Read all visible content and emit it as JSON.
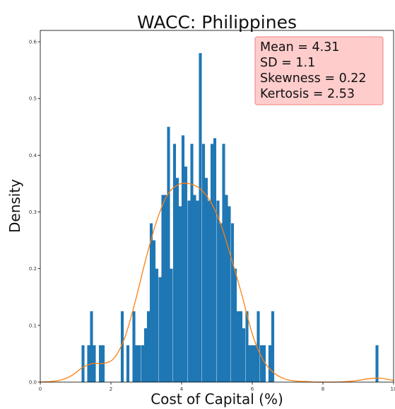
{
  "chart_data": {
    "type": "bar",
    "title": "WACC: Philippines",
    "xlabel": "Cost of Capital (%)",
    "ylabel": "Density",
    "xlim": [
      0,
      10
    ],
    "ylim": [
      0,
      0.62
    ],
    "x_ticks": [
      0,
      2,
      4,
      6,
      8,
      10
    ],
    "x_tick_labels": [
      "0",
      "2",
      "4",
      "6",
      "8",
      "10"
    ],
    "y_ticks": [
      0,
      0.1,
      0.2,
      0.3,
      0.4,
      0.5,
      0.6
    ],
    "y_tick_labels": [
      "0.0",
      "0.1",
      "0.2",
      "0.3",
      "0.4",
      "0.5",
      "0.6"
    ],
    "grid": false,
    "bar_color": "#1f77b4",
    "kde_color": "#ff7f0e",
    "bin_width": 0.0819,
    "histogram": {
      "x": [
        1.21,
        1.37,
        1.45,
        1.53,
        1.62,
        1.7,
        1.78,
        2.32,
        2.48,
        2.57,
        2.65,
        2.73,
        2.81,
        2.9,
        2.98,
        3.06,
        3.14,
        3.22,
        3.3,
        3.39,
        3.47,
        3.55,
        3.63,
        3.71,
        3.8,
        3.88,
        3.96,
        4.04,
        4.12,
        4.21,
        4.29,
        4.37,
        4.45,
        4.53,
        4.62,
        4.7,
        4.78,
        4.86,
        4.94,
        5.03,
        5.11,
        5.19,
        5.27,
        5.35,
        5.44,
        5.52,
        5.6,
        5.68,
        5.76,
        5.85,
        5.93,
        6.01,
        6.09,
        6.17,
        6.26,
        6.34,
        6.42,
        6.5,
        6.58,
        9.53
      ],
      "density": [
        0.065,
        0.065,
        0.125,
        0.065,
        0.0,
        0.065,
        0.065,
        0.125,
        0.065,
        0.0,
        0.125,
        0.065,
        0.065,
        0.065,
        0.095,
        0.125,
        0.28,
        0.25,
        0.2,
        0.185,
        0.33,
        0.33,
        0.45,
        0.2,
        0.42,
        0.36,
        0.31,
        0.435,
        0.38,
        0.32,
        0.42,
        0.33,
        0.32,
        0.58,
        0.42,
        0.36,
        0.32,
        0.42,
        0.43,
        0.32,
        0.28,
        0.42,
        0.33,
        0.31,
        0.28,
        0.2,
        0.125,
        0.125,
        0.095,
        0.125,
        0.065,
        0.065,
        0.065,
        0.125,
        0.065,
        0.065,
        0.0,
        0.065,
        0.125,
        0.065
      ]
    },
    "kde": {
      "x": [
        0.0,
        0.3,
        0.6,
        0.9,
        1.2,
        1.5,
        1.8,
        2.1,
        2.4,
        2.7,
        3.0,
        3.3,
        3.6,
        3.9,
        4.2,
        4.5,
        4.8,
        5.1,
        5.4,
        5.7,
        6.0,
        6.3,
        6.6,
        6.9,
        7.2,
        7.5,
        7.8,
        8.1,
        8.4,
        8.7,
        9.0,
        9.3,
        9.6,
        9.9,
        10.0
      ],
      "density": [
        0.0,
        0.001,
        0.004,
        0.012,
        0.026,
        0.033,
        0.033,
        0.043,
        0.08,
        0.145,
        0.22,
        0.285,
        0.33,
        0.348,
        0.35,
        0.342,
        0.32,
        0.28,
        0.22,
        0.155,
        0.085,
        0.04,
        0.017,
        0.006,
        0.002,
        0.001,
        0.0,
        0.0,
        0.0,
        0.001,
        0.003,
        0.006,
        0.007,
        0.004,
        0.003
      ]
    },
    "annotation": {
      "lines": [
        "Mean = 4.31",
        "SD = 1.1",
        "Skewness = 0.22",
        "Kertosis = 2.53"
      ],
      "placement": "top-right",
      "face_color": "#ffcccc",
      "edge_color": "#f08080"
    }
  }
}
